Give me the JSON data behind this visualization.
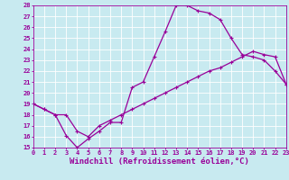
{
  "title": "",
  "xlabel": "Windchill (Refroidissement éolien,°C)",
  "ylabel": "",
  "xlim": [
    0,
    23
  ],
  "ylim": [
    15,
    28
  ],
  "xticks": [
    0,
    1,
    2,
    3,
    4,
    5,
    6,
    7,
    8,
    9,
    10,
    11,
    12,
    13,
    14,
    15,
    16,
    17,
    18,
    19,
    20,
    21,
    22,
    23
  ],
  "yticks": [
    15,
    16,
    17,
    18,
    19,
    20,
    21,
    22,
    23,
    24,
    25,
    26,
    27,
    28
  ],
  "background_color": "#c8eaf0",
  "grid_color": "#ffffff",
  "line_color": "#990099",
  "line1_x": [
    0,
    1,
    2,
    3,
    4,
    5,
    6,
    7,
    8,
    9,
    10,
    11,
    12,
    13,
    14,
    15,
    16,
    17,
    18,
    19,
    20,
    21,
    22,
    23
  ],
  "line1_y": [
    19.0,
    18.5,
    18.0,
    16.1,
    15.0,
    15.8,
    16.5,
    17.3,
    17.3,
    20.5,
    21.0,
    23.3,
    25.6,
    28.0,
    28.0,
    27.5,
    27.3,
    26.7,
    25.0,
    23.5,
    23.3,
    23.0,
    22.0,
    20.8
  ],
  "line2_x": [
    0,
    1,
    2,
    3,
    4,
    5,
    6,
    7,
    8,
    9,
    10,
    11,
    12,
    13,
    14,
    15,
    16,
    17,
    18,
    19,
    20,
    21,
    22,
    23
  ],
  "line2_y": [
    19.0,
    18.5,
    18.0,
    18.0,
    16.5,
    16.0,
    17.0,
    17.5,
    18.0,
    18.5,
    19.0,
    19.5,
    20.0,
    20.5,
    21.0,
    21.5,
    22.0,
    22.3,
    22.8,
    23.3,
    23.8,
    23.5,
    23.3,
    20.8
  ],
  "marker": "+",
  "markersize": 3.5,
  "linewidth": 0.9,
  "tick_fontsize": 5.0,
  "xlabel_fontsize": 6.5,
  "fig_bg": "#c8eaf0"
}
